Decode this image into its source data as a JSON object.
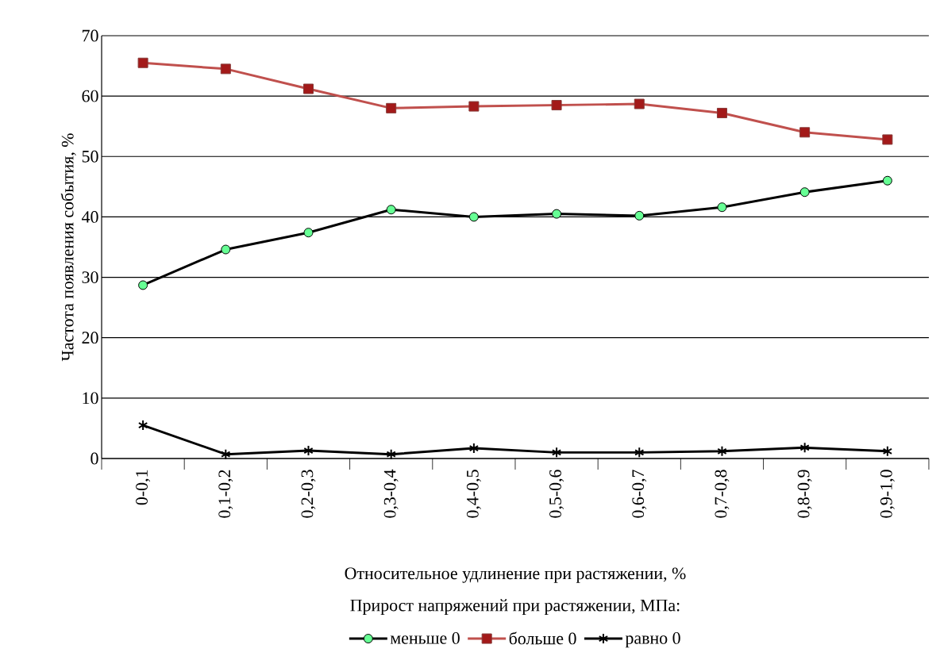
{
  "chart_data": {
    "type": "line",
    "xlabel": "Относительное удлинение при растяжении, %",
    "ylabel": "Частота  появления события, %",
    "legend_title": "Прирост напряжений при растяжении, МПа:",
    "categories": [
      "0-0,1",
      "0,1-0,2",
      "0,2-0,3",
      "0,3-0,4",
      "0,4-0,5",
      "0,5-0,6",
      "0,6-0,7",
      "0,7-0,8",
      "0,8-0,9",
      "0,9-1,0"
    ],
    "series": [
      {
        "name": "меньше 0",
        "color": "#000000",
        "marker": "circle",
        "values": [
          28.7,
          34.6,
          37.4,
          41.2,
          40.0,
          40.5,
          40.2,
          41.6,
          44.1,
          46.0
        ]
      },
      {
        "name": "больше 0",
        "color": "#c0504d",
        "marker": "square",
        "values": [
          65.5,
          64.5,
          61.2,
          58.0,
          58.3,
          58.5,
          58.7,
          57.2,
          54.0,
          52.8
        ]
      },
      {
        "name": "равно 0",
        "color": "#000000",
        "marker": "cross",
        "values": [
          5.5,
          0.7,
          1.3,
          0.7,
          1.7,
          1.0,
          1.0,
          1.2,
          1.8,
          1.2
        ]
      }
    ],
    "ylim": [
      0,
      70
    ],
    "yticks": [
      0,
      10,
      20,
      30,
      40,
      50,
      60,
      70
    ],
    "grid": "y",
    "legend": "bottom"
  }
}
